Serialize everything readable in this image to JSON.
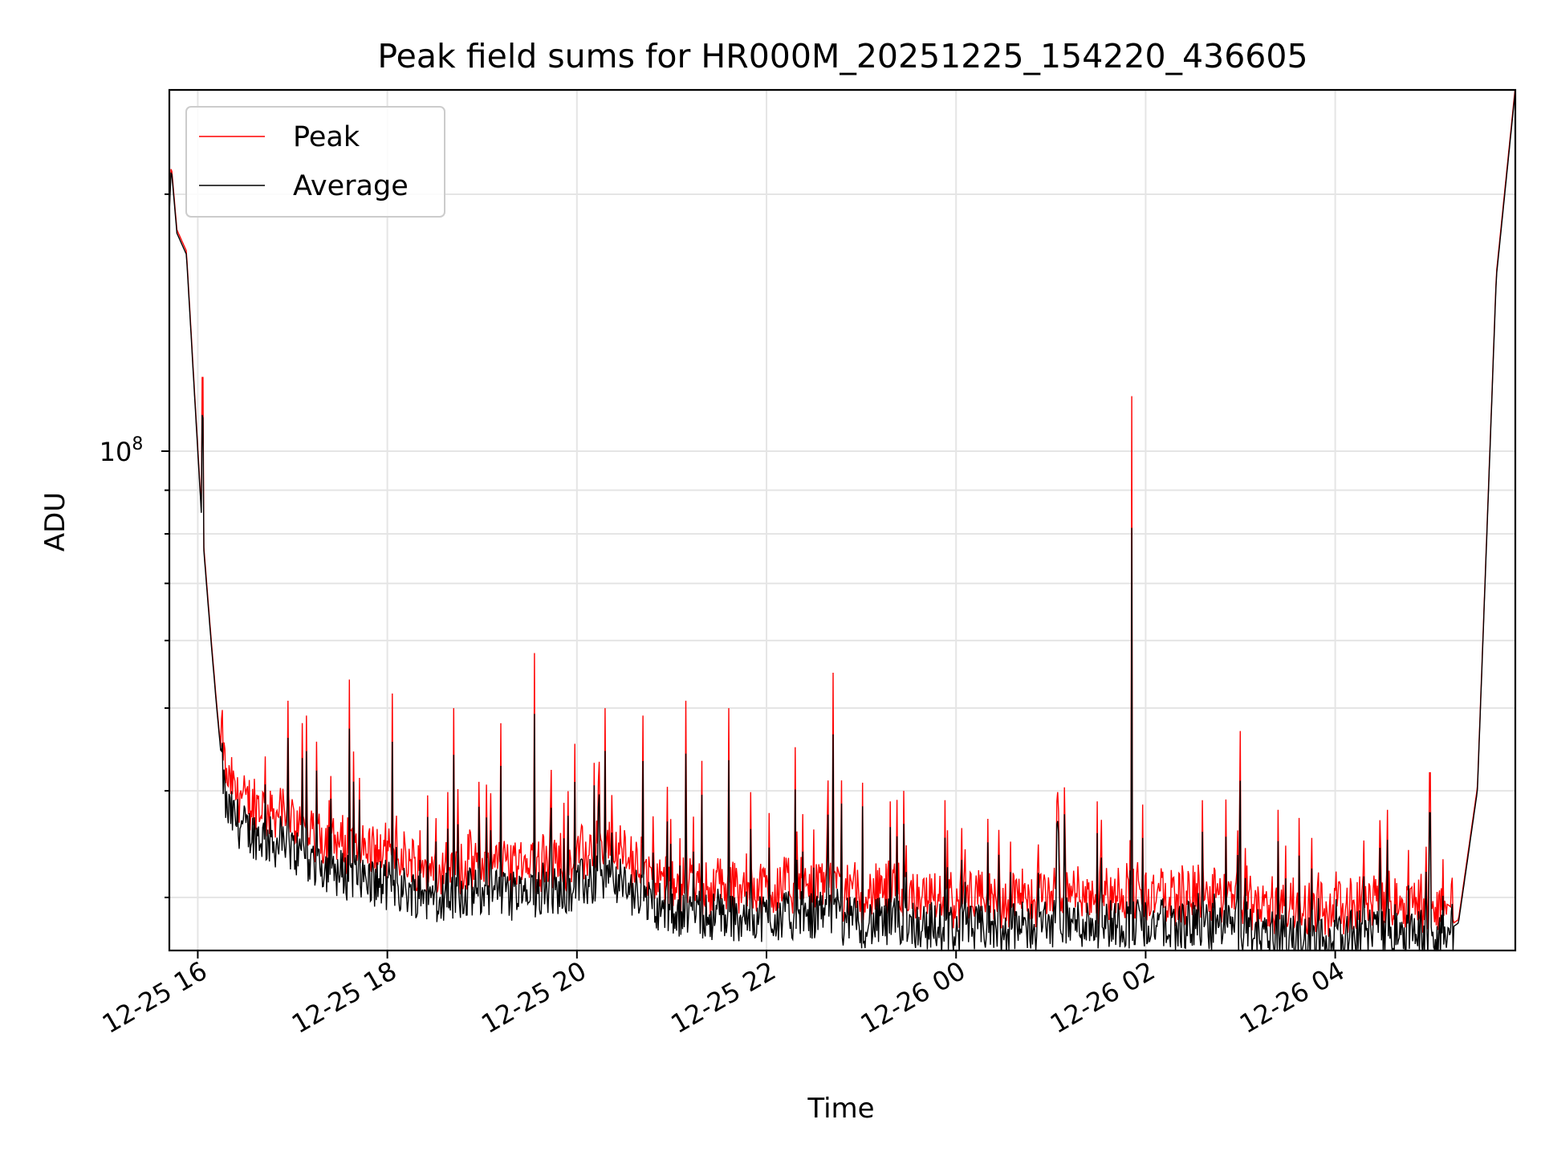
{
  "chart_data": {
    "type": "line",
    "title": "Peak field sums for HR000M_20251225_154220_436605",
    "xlabel": "Time",
    "ylabel": "ADU",
    "yscale": "log",
    "ylim": [
      26000000,
      265000000
    ],
    "xlim_hours": [
      -0.3,
      13.9
    ],
    "x_ticks": [
      {
        "label": "12-25 16",
        "hour": 0
      },
      {
        "label": "12-25 18",
        "hour": 2
      },
      {
        "label": "12-25 20",
        "hour": 4
      },
      {
        "label": "12-25 22",
        "hour": 6
      },
      {
        "label": "12-26 00",
        "hour": 8
      },
      {
        "label": "12-26 02",
        "hour": 10
      },
      {
        "label": "12-26 04",
        "hour": 12
      }
    ],
    "y_major_ticks": [
      {
        "value": 100000000,
        "base": "10",
        "exp": "8"
      }
    ],
    "y_minor_ticks": [
      30000000,
      40000000,
      50000000,
      60000000,
      70000000,
      80000000,
      90000000,
      200000000
    ],
    "grid": true,
    "legend": {
      "position": "top-left",
      "entries": [
        {
          "label": "Peak",
          "color": "#ff0000"
        },
        {
          "label": "Average",
          "color": "#000000"
        }
      ]
    },
    "series": [
      {
        "name": "Peak",
        "color": "#ff0000"
      },
      {
        "name": "Average",
        "color": "#000000"
      }
    ],
    "base_curve_hours": [
      -0.3,
      -0.28,
      -0.22,
      -0.12,
      0.0,
      0.05,
      0.1,
      0.15,
      0.2,
      0.3,
      0.5,
      1.0,
      1.5,
      2.0,
      2.5,
      3.0,
      3.5,
      4.0,
      4.3,
      4.5,
      4.8,
      5.0,
      5.5,
      6.0,
      6.5,
      7.0,
      7.5,
      8.0,
      8.5,
      9.0,
      9.5,
      10.0,
      10.5,
      11.0,
      11.5,
      11.9,
      12.1,
      12.5,
      12.9,
      13.1,
      13.3,
      13.5,
      13.6,
      13.7,
      13.9
    ],
    "base_curve_adu": [
      190000000,
      215000000,
      180000000,
      170000000,
      100000000,
      80000000,
      68000000,
      58000000,
      50000000,
      38000000,
      36000000,
      34000000,
      32000000,
      31000000,
      30000000,
      30500000,
      30000000,
      31000000,
      31500000,
      31000000,
      29500000,
      29000000,
      28500000,
      28500000,
      28500000,
      28000000,
      28000000,
      27500000,
      27500000,
      28000000,
      28000000,
      28000000,
      27800000,
      27500000,
      27000000,
      26500000,
      27000000,
      27500000,
      27500000,
      27000000,
      28000000,
      40000000,
      80000000,
      160000000,
      265000000
    ],
    "peak_spikes": [
      {
        "hour": 0.05,
        "adu": 122000000
      },
      {
        "hour": 0.15,
        "adu": 47000000
      },
      {
        "hour": 0.95,
        "adu": 51000000
      },
      {
        "hour": 1.15,
        "adu": 49000000
      },
      {
        "hour": 1.6,
        "adu": 54000000
      },
      {
        "hour": 2.05,
        "adu": 52000000
      },
      {
        "hour": 2.7,
        "adu": 50000000
      },
      {
        "hour": 3.2,
        "adu": 48000000
      },
      {
        "hour": 3.55,
        "adu": 58000000
      },
      {
        "hour": 4.3,
        "adu": 50000000
      },
      {
        "hour": 4.7,
        "adu": 49000000
      },
      {
        "hour": 5.15,
        "adu": 51000000
      },
      {
        "hour": 5.6,
        "adu": 50000000
      },
      {
        "hour": 6.3,
        "adu": 45000000
      },
      {
        "hour": 6.7,
        "adu": 55000000
      },
      {
        "hour": 7.45,
        "adu": 40000000
      },
      {
        "hour": 8.45,
        "adu": 36000000
      },
      {
        "hour": 9.85,
        "adu": 116000000
      },
      {
        "hour": 10.6,
        "adu": 39000000
      },
      {
        "hour": 11.0,
        "adu": 47000000
      },
      {
        "hour": 11.4,
        "adu": 38000000
      },
      {
        "hour": 12.55,
        "adu": 38000000
      },
      {
        "hour": 13.0,
        "adu": 42000000
      }
    ]
  }
}
